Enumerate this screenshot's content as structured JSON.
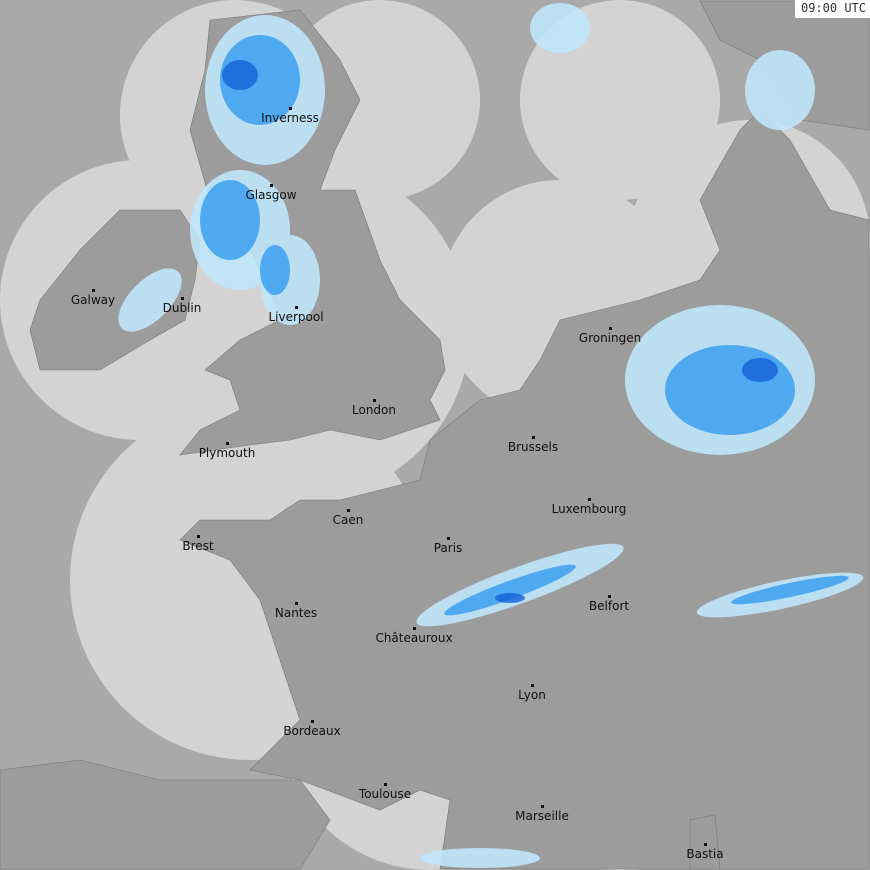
{
  "timestamp": "09:00 UTC",
  "colors": {
    "land": "#9c9c9c",
    "sea_covered": "#d3d3d3",
    "sea_uncovered": "#a9a9a9",
    "rain_light": "#bfe6fb",
    "rain_mid": "#3aa0f0",
    "rain_heavy": "#1560d8"
  },
  "cities": [
    {
      "name": "Inverness"
    },
    {
      "name": "Glasgow"
    },
    {
      "name": "Galway"
    },
    {
      "name": "Dublin"
    },
    {
      "name": "Liverpool"
    },
    {
      "name": "London"
    },
    {
      "name": "Plymouth"
    },
    {
      "name": "Groningen"
    },
    {
      "name": "Brussels"
    },
    {
      "name": "Luxembourg"
    },
    {
      "name": "Caen"
    },
    {
      "name": "Brest"
    },
    {
      "name": "Paris"
    },
    {
      "name": "Nantes"
    },
    {
      "name": "Châteauroux"
    },
    {
      "name": "Belfort"
    },
    {
      "name": "Lyon"
    },
    {
      "name": "Bordeaux"
    },
    {
      "name": "Toulouse"
    },
    {
      "name": "Marseille"
    },
    {
      "name": "Bastia"
    }
  ]
}
